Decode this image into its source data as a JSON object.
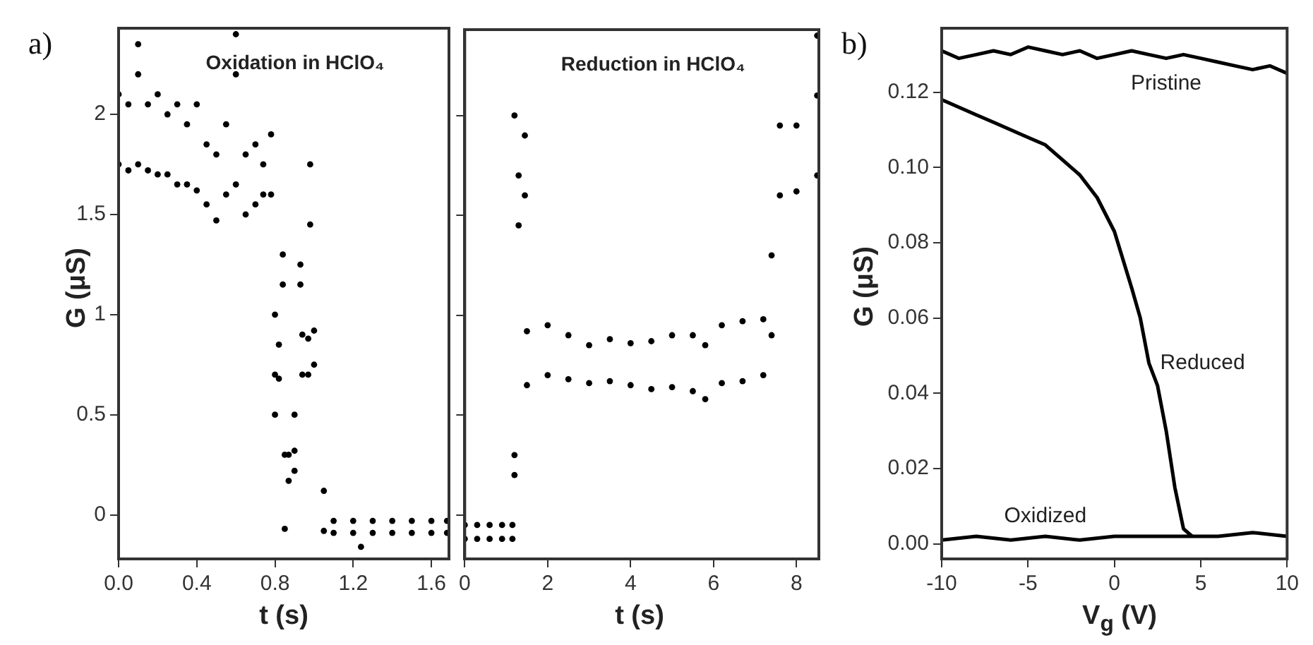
{
  "chart_data": [
    {
      "type": "scatter",
      "title": "Oxidation in HClO₄",
      "xlabel": "t (s)",
      "ylabel": "G (μS)",
      "annotations": [
        "a)"
      ],
      "marker": "circle",
      "x": [
        0,
        0,
        0.05,
        0.05,
        0.1,
        0.1,
        0.1,
        0.15,
        0.15,
        0.2,
        0.2,
        0.25,
        0.25,
        0.3,
        0.3,
        0.35,
        0.35,
        0.4,
        0.4,
        0.45,
        0.45,
        0.5,
        0.5,
        0.55,
        0.55,
        0.6,
        0.6,
        0.6,
        0.65,
        0.65,
        0.7,
        0.7,
        0.74,
        0.74,
        0.78,
        0.78,
        0.8,
        0.8,
        0.8,
        0.82,
        0.82,
        0.84,
        0.84,
        0.85,
        0.85,
        0.87,
        0.87,
        0.9,
        0.9,
        0.9,
        0.93,
        0.93,
        0.94,
        0.94,
        0.97,
        0.97,
        0.98,
        0.98,
        1.0,
        1.0,
        1.05,
        1.05,
        1.1,
        1.1,
        1.2,
        1.2,
        1.24,
        1.3,
        1.3,
        1.4,
        1.4,
        1.5,
        1.5,
        1.6,
        1.6,
        1.68,
        1.68
      ],
      "series": [
        {
          "color": "#000000",
          "values": [
            2.1,
            1.75,
            2.05,
            1.72,
            2.2,
            1.75,
            2.35,
            2.05,
            1.72,
            2.1,
            1.7,
            2.0,
            1.7,
            2.05,
            1.65,
            1.95,
            1.65,
            2.05,
            1.62,
            1.85,
            1.55,
            1.8,
            1.47,
            1.95,
            1.6,
            2.2,
            1.65,
            2.4,
            1.8,
            1.5,
            1.85,
            1.55,
            1.75,
            1.6,
            1.9,
            1.6,
            1.0,
            0.7,
            0.5,
            0.85,
            0.68,
            1.3,
            1.15,
            0.3,
            -0.07,
            0.17,
            0.3,
            0.32,
            0.22,
            0.5,
            1.25,
            1.15,
            0.9,
            0.7,
            0.88,
            0.7,
            1.75,
            1.45,
            0.92,
            0.75,
            0.12,
            -0.08,
            -0.03,
            -0.09,
            -0.03,
            -0.09,
            -0.16,
            -0.03,
            -0.09,
            -0.03,
            -0.09,
            -0.03,
            -0.09,
            -0.03,
            -0.09,
            -0.03,
            -0.09
          ]
        }
      ],
      "xlim": [
        0,
        1.69
      ],
      "xticks": [
        {
          "value": 0,
          "label": "0.0"
        },
        0.4,
        0.8,
        1.2,
        1.6
      ],
      "ylim": [
        -0.22,
        2.43
      ],
      "yticks": [
        0,
        0.5,
        1,
        1.5,
        2
      ]
    },
    {
      "type": "scatter",
      "title": "Reduction in HClO₄",
      "xlabel": "t (s)",
      "marker": "circle",
      "tick_labels": "x",
      "x": [
        0,
        0,
        0.3,
        0.3,
        0.6,
        0.6,
        0.9,
        0.9,
        1.15,
        1.15,
        1.2,
        1.2,
        1.2,
        1.3,
        1.3,
        1.45,
        1.45,
        1.5,
        1.5,
        2,
        2,
        2.5,
        2.5,
        3,
        3,
        3.5,
        3.5,
        4,
        4,
        4.5,
        4.5,
        5,
        5,
        5.5,
        5.5,
        5.8,
        5.8,
        6.2,
        6.2,
        6.7,
        6.7,
        7.2,
        7.2,
        7.4,
        7.4,
        7.6,
        7.6,
        8,
        8,
        8.5,
        8.5,
        8.5
      ],
      "series": [
        {
          "color": "#000000",
          "values": [
            -0.05,
            -0.12,
            -0.05,
            -0.12,
            -0.05,
            -0.12,
            -0.05,
            -0.12,
            -0.05,
            -0.12,
            0.3,
            0.2,
            2.0,
            1.7,
            1.45,
            1.9,
            1.6,
            0.92,
            0.65,
            0.95,
            0.7,
            0.9,
            0.68,
            0.85,
            0.66,
            0.88,
            0.67,
            0.86,
            0.65,
            0.87,
            0.63,
            0.9,
            0.64,
            0.9,
            0.62,
            0.85,
            0.58,
            0.95,
            0.66,
            0.97,
            0.67,
            0.98,
            0.7,
            1.3,
            0.9,
            1.95,
            1.6,
            1.95,
            1.62,
            2.1,
            1.7,
            2.4
          ]
        }
      ],
      "xlim": [
        0,
        8.54
      ],
      "xticks": [
        0,
        2,
        4,
        6,
        8
      ],
      "ylim": [
        -0.22,
        2.43
      ],
      "yticks": [
        0,
        0.5,
        1,
        1.5,
        2
      ]
    },
    {
      "type": "line",
      "annotations": [
        "b)"
      ],
      "xlabel": "V$_{g}$ (V)",
      "ylabel": "G (μS)",
      "marker": "none",
      "series": [
        {
          "name": "Pristine",
          "color": "#000000",
          "x": [
            -10,
            -9,
            -8,
            -7,
            -6,
            -5,
            -4,
            -3,
            -2,
            -1,
            0,
            1,
            2,
            3,
            4,
            5,
            6,
            7,
            8,
            9,
            10
          ],
          "values": [
            0.131,
            0.129,
            0.13,
            0.131,
            0.13,
            0.132,
            0.131,
            0.13,
            0.131,
            0.129,
            0.13,
            0.131,
            0.13,
            0.129,
            0.13,
            0.129,
            0.128,
            0.127,
            0.126,
            0.127,
            0.125
          ]
        },
        {
          "name": "Reduced",
          "color": "#000000",
          "x": [
            -10,
            -9,
            -8,
            -7,
            -6,
            -5,
            -4,
            -3,
            -2,
            -1,
            0,
            1,
            1.5,
            2,
            2.5,
            3,
            3.5,
            4,
            4.5
          ],
          "values": [
            0.118,
            0.116,
            0.114,
            0.112,
            0.11,
            0.108,
            0.106,
            0.102,
            0.098,
            0.092,
            0.083,
            0.068,
            0.06,
            0.048,
            0.042,
            0.03,
            0.015,
            0.004,
            0.002
          ]
        },
        {
          "name": "Oxidized",
          "color": "#000000",
          "x": [
            -10,
            -8,
            -6,
            -4,
            -2,
            0,
            2,
            4,
            6,
            8,
            10
          ],
          "values": [
            0.001,
            0.002,
            0.001,
            0.002,
            0.001,
            0.002,
            0.002,
            0.002,
            0.002,
            0.003,
            0.002
          ]
        }
      ],
      "xlim": [
        -10,
        10
      ],
      "xticks": [
        -10,
        -5,
        0,
        5,
        10
      ],
      "ylim": [
        -0.004,
        0.137
      ],
      "yticks": [
        {
          "value": 0,
          "label": "0.00"
        },
        {
          "value": 0.02,
          "label": "0.02"
        },
        {
          "value": 0.04,
          "label": "0.04"
        },
        {
          "value": 0.06,
          "label": "0.06"
        },
        {
          "value": 0.08,
          "label": "0.08"
        },
        {
          "value": 0.1,
          "label": "0.10"
        },
        {
          "value": 0.12,
          "label": "0.12"
        }
      ]
    }
  ]
}
